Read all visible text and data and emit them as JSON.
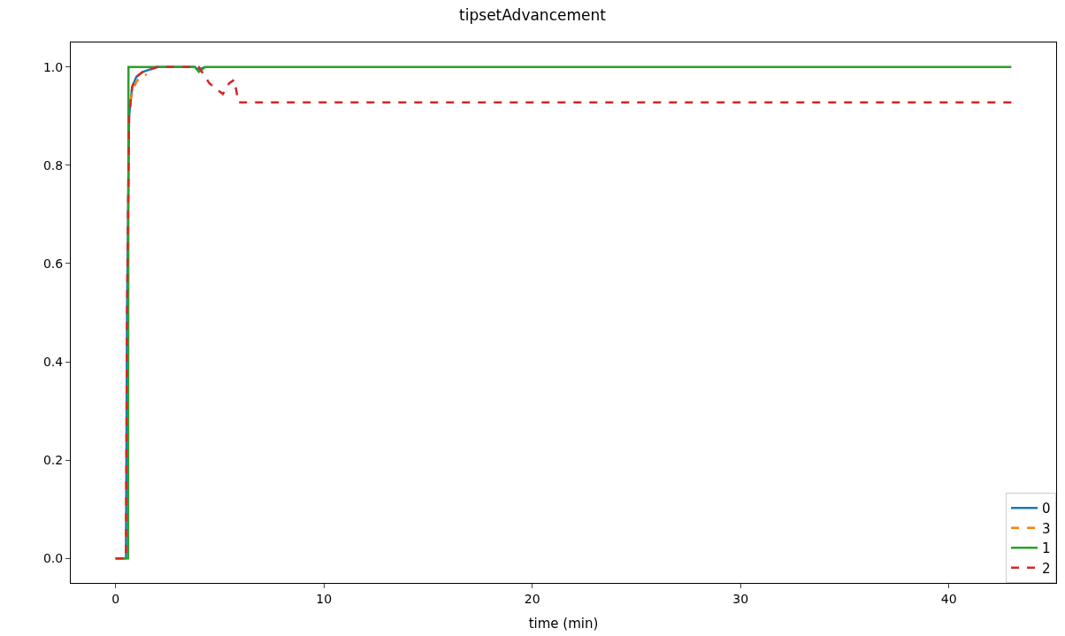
{
  "chart_data": {
    "type": "line",
    "title": "tipsetAdvancement",
    "xlabel": "time (min)",
    "xlim": [
      -2.15,
      45.15
    ],
    "xticks": [
      0,
      10,
      20,
      30,
      40
    ],
    "ylim": [
      -0.05,
      1.05
    ],
    "yticks": [
      {
        "value": 0,
        "label": "0.0"
      },
      {
        "value": 0.2,
        "label": "0.2"
      },
      {
        "value": 0.4,
        "label": "0.4"
      },
      {
        "value": 0.6,
        "label": "0.6"
      },
      {
        "value": 0.8,
        "label": "0.8"
      },
      {
        "value": 1,
        "label": "1.0"
      }
    ],
    "legend": "bottom right",
    "series": [
      {
        "name": "0",
        "color": "#1f77b4",
        "line_style": "solid",
        "x": [
          0,
          0.5,
          0.55,
          0.65,
          0.8,
          1.0,
          1.3,
          2.0,
          3.0,
          3.8,
          4.0,
          4.3
        ],
        "values": [
          0,
          0,
          0.5,
          0.9,
          0.96,
          0.98,
          0.99,
          1.0,
          1.0,
          1.0,
          0.995,
          1.0
        ]
      },
      {
        "name": "3",
        "color": "#ff7f0e",
        "line_style": "dashed",
        "x": [
          0.7,
          0.85,
          1.0,
          1.2,
          1.5
        ],
        "values": [
          0.93,
          0.955,
          0.97,
          0.98,
          0.985
        ]
      },
      {
        "name": "1",
        "color": "#2ca02c",
        "line_style": "solid",
        "x": [
          0,
          0.6,
          0.62,
          3.8,
          4.0,
          4.3,
          43
        ],
        "values": [
          0,
          0,
          1.0,
          1.0,
          0.99,
          1.0,
          1.0
        ]
      },
      {
        "name": "2",
        "color": "#d62728",
        "line_style": "dashed",
        "x": [
          0,
          0.5,
          0.55,
          0.65,
          0.8,
          1.0,
          1.3,
          2.0,
          3.0,
          4.0,
          4.5,
          5.15,
          5.45,
          5.7,
          5.9,
          43
        ],
        "values": [
          0,
          0,
          0.5,
          0.9,
          0.96,
          0.98,
          0.99,
          1.0,
          1.0,
          1.0,
          0.967,
          0.945,
          0.967,
          0.974,
          0.928,
          0.928
        ]
      }
    ]
  }
}
